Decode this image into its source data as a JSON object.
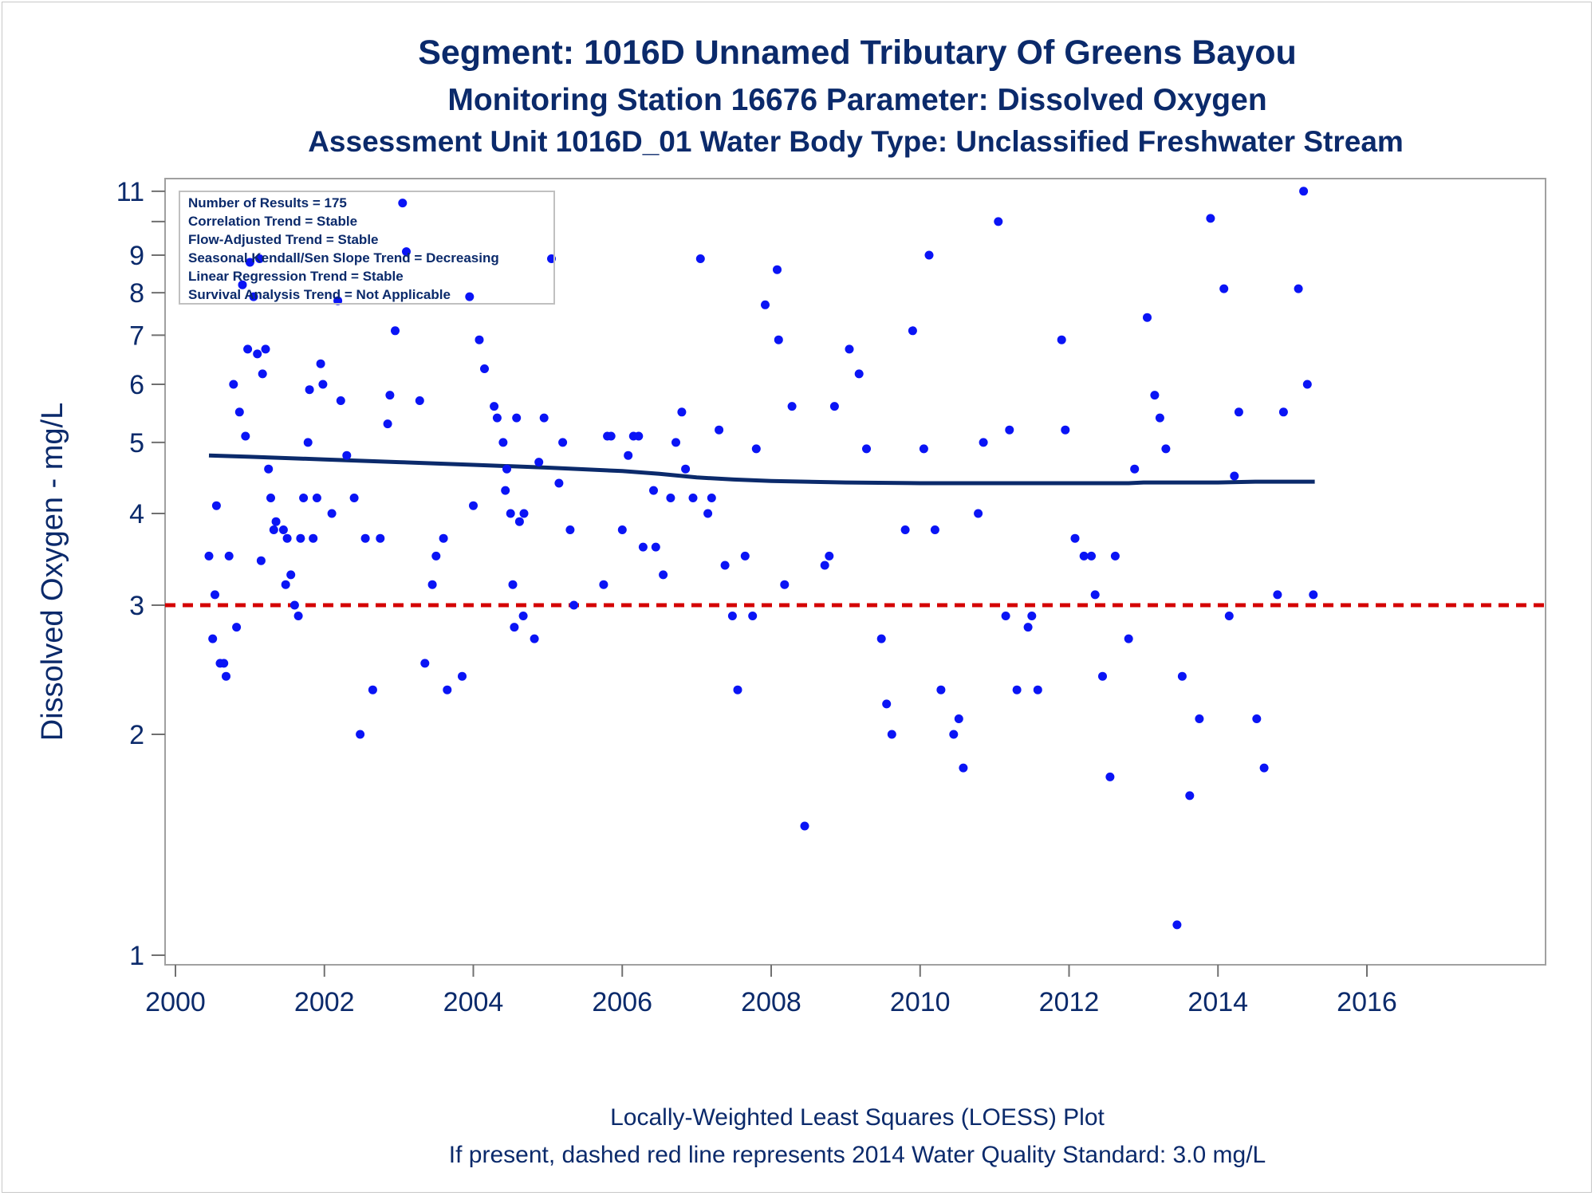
{
  "titles": {
    "line1": "Segment: 1016D  Unnamed Tributary Of Greens Bayou",
    "line2": "Monitoring Station 16676 Parameter: Dissolved Oxygen",
    "line3": "Assessment Unit 1016D_01   Water Body Type: Unclassified Freshwater Stream"
  },
  "footnotes": {
    "line1": "Locally-Weighted Least Squares (LOESS) Plot",
    "line2": "If present, dashed red line represents 2014 Water Quality Standard: 3.0 mg/L"
  },
  "stats_box": [
    "Number of Results = 175",
    "Correlation Trend = Stable",
    "Flow-Adjusted Trend = Stable",
    "Seasonal Kendall/Sen Slope Trend = Decreasing",
    "Linear Regression Trend = Stable",
    "Survival Analysis Trend = Not Applicable"
  ],
  "colors": {
    "points": "#0a14f5",
    "loess": "#0b2a6b",
    "standard": "#d40000",
    "text": "#0b2a6b"
  },
  "chart_data": {
    "type": "scatter",
    "ylabel": "Dissolved Oxygen - mg/L",
    "xlabel": "",
    "y_scale": "log",
    "xlim": [
      2000,
      2016
    ],
    "ylim": [
      0.97,
      11.4
    ],
    "x_ticks": [
      2000,
      2002,
      2004,
      2006,
      2008,
      2010,
      2012,
      2014,
      2016
    ],
    "y_ticks": [
      1,
      2,
      3,
      4,
      5,
      6,
      7,
      8,
      9,
      10,
      11
    ],
    "y_tick_labels": [
      "1",
      "2",
      "3",
      "4",
      "5",
      "6",
      "7",
      "8",
      "9",
      "",
      "11"
    ],
    "grid": false,
    "legend": "none",
    "standard_line": {
      "value": 3.0,
      "style": "dashed"
    },
    "points": [
      [
        2000.45,
        3.5
      ],
      [
        2000.5,
        2.7
      ],
      [
        2000.53,
        3.1
      ],
      [
        2000.55,
        4.1
      ],
      [
        2000.6,
        2.5
      ],
      [
        2000.65,
        2.5
      ],
      [
        2000.68,
        2.4
      ],
      [
        2000.72,
        3.5
      ],
      [
        2000.78,
        6.0
      ],
      [
        2000.82,
        2.8
      ],
      [
        2000.86,
        5.5
      ],
      [
        2000.9,
        8.2
      ],
      [
        2000.94,
        5.1
      ],
      [
        2000.97,
        6.7
      ],
      [
        2001.0,
        8.8
      ],
      [
        2001.05,
        7.9
      ],
      [
        2001.1,
        6.6
      ],
      [
        2001.13,
        8.9
      ],
      [
        2001.15,
        3.45
      ],
      [
        2001.17,
        6.2
      ],
      [
        2001.21,
        6.7
      ],
      [
        2001.25,
        4.6
      ],
      [
        2001.28,
        4.2
      ],
      [
        2001.32,
        3.8
      ],
      [
        2001.35,
        3.9
      ],
      [
        2001.45,
        3.8
      ],
      [
        2001.48,
        3.2
      ],
      [
        2001.5,
        3.7
      ],
      [
        2001.55,
        3.3
      ],
      [
        2001.6,
        3.0
      ],
      [
        2001.65,
        2.9
      ],
      [
        2001.68,
        3.7
      ],
      [
        2001.72,
        4.2
      ],
      [
        2001.78,
        5.0
      ],
      [
        2001.8,
        5.9
      ],
      [
        2001.85,
        3.7
      ],
      [
        2001.9,
        4.2
      ],
      [
        2001.95,
        6.4
      ],
      [
        2001.98,
        6.0
      ],
      [
        2002.1,
        4.0
      ],
      [
        2002.18,
        7.8
      ],
      [
        2002.22,
        5.7
      ],
      [
        2002.3,
        4.8
      ],
      [
        2002.4,
        4.2
      ],
      [
        2002.48,
        2.0
      ],
      [
        2002.55,
        3.7
      ],
      [
        2002.65,
        2.3
      ],
      [
        2002.75,
        3.7
      ],
      [
        2002.85,
        5.3
      ],
      [
        2002.88,
        5.8
      ],
      [
        2002.95,
        7.1
      ],
      [
        2003.05,
        10.6
      ],
      [
        2003.1,
        9.1
      ],
      [
        2003.28,
        5.7
      ],
      [
        2003.35,
        2.5
      ],
      [
        2003.45,
        3.2
      ],
      [
        2003.5,
        3.5
      ],
      [
        2003.6,
        3.7
      ],
      [
        2003.65,
        2.3
      ],
      [
        2003.85,
        2.4
      ],
      [
        2003.95,
        7.9
      ],
      [
        2004.0,
        4.1
      ],
      [
        2004.08,
        6.9
      ],
      [
        2004.15,
        6.3
      ],
      [
        2004.28,
        5.6
      ],
      [
        2004.32,
        5.4
      ],
      [
        2004.4,
        5.0
      ],
      [
        2004.43,
        4.3
      ],
      [
        2004.45,
        4.6
      ],
      [
        2004.5,
        4.0
      ],
      [
        2004.53,
        3.2
      ],
      [
        2004.55,
        2.8
      ],
      [
        2004.58,
        5.4
      ],
      [
        2004.62,
        3.9
      ],
      [
        2004.67,
        2.9
      ],
      [
        2004.68,
        4.0
      ],
      [
        2004.82,
        2.7
      ],
      [
        2004.88,
        4.7
      ],
      [
        2004.95,
        5.4
      ],
      [
        2005.05,
        8.9
      ],
      [
        2005.15,
        4.4
      ],
      [
        2005.2,
        5.0
      ],
      [
        2005.3,
        3.8
      ],
      [
        2005.35,
        3.0
      ],
      [
        2005.75,
        3.2
      ],
      [
        2005.8,
        5.1
      ],
      [
        2005.85,
        5.1
      ],
      [
        2006.0,
        3.8
      ],
      [
        2006.08,
        4.8
      ],
      [
        2006.15,
        5.1
      ],
      [
        2006.22,
        5.1
      ],
      [
        2006.28,
        3.6
      ],
      [
        2006.42,
        4.3
      ],
      [
        2006.45,
        3.6
      ],
      [
        2006.55,
        3.3
      ],
      [
        2006.65,
        4.2
      ],
      [
        2006.72,
        5.0
      ],
      [
        2006.8,
        5.5
      ],
      [
        2006.85,
        4.6
      ],
      [
        2006.95,
        4.2
      ],
      [
        2007.05,
        8.9
      ],
      [
        2007.15,
        4.0
      ],
      [
        2007.2,
        4.2
      ],
      [
        2007.3,
        5.2
      ],
      [
        2007.38,
        3.4
      ],
      [
        2007.48,
        2.9
      ],
      [
        2007.55,
        2.3
      ],
      [
        2007.65,
        3.5
      ],
      [
        2007.75,
        2.9
      ],
      [
        2007.8,
        4.9
      ],
      [
        2007.92,
        7.7
      ],
      [
        2008.08,
        8.6
      ],
      [
        2008.1,
        6.9
      ],
      [
        2008.18,
        3.2
      ],
      [
        2008.28,
        5.6
      ],
      [
        2008.45,
        1.5
      ],
      [
        2008.72,
        3.4
      ],
      [
        2008.78,
        3.5
      ],
      [
        2008.85,
        5.6
      ],
      [
        2009.05,
        6.7
      ],
      [
        2009.18,
        6.2
      ],
      [
        2009.28,
        4.9
      ],
      [
        2009.48,
        2.7
      ],
      [
        2009.55,
        2.2
      ],
      [
        2009.62,
        2.0
      ],
      [
        2009.8,
        3.8
      ],
      [
        2009.9,
        7.1
      ],
      [
        2010.05,
        4.9
      ],
      [
        2010.12,
        9.0
      ],
      [
        2010.2,
        3.8
      ],
      [
        2010.28,
        2.3
      ],
      [
        2010.45,
        2.0
      ],
      [
        2010.52,
        2.1
      ],
      [
        2010.58,
        1.8
      ],
      [
        2010.78,
        4.0
      ],
      [
        2010.85,
        5.0
      ],
      [
        2011.05,
        10.0
      ],
      [
        2011.15,
        2.9
      ],
      [
        2011.2,
        5.2
      ],
      [
        2011.3,
        2.3
      ],
      [
        2011.45,
        2.8
      ],
      [
        2011.5,
        2.9
      ],
      [
        2011.58,
        2.3
      ],
      [
        2011.9,
        6.9
      ],
      [
        2011.95,
        5.2
      ],
      [
        2012.08,
        3.7
      ],
      [
        2012.2,
        3.5
      ],
      [
        2012.3,
        3.5
      ],
      [
        2012.35,
        3.1
      ],
      [
        2012.45,
        2.4
      ],
      [
        2012.55,
        1.75
      ],
      [
        2012.62,
        3.5
      ],
      [
        2012.8,
        2.7
      ],
      [
        2012.88,
        4.6
      ],
      [
        2013.05,
        7.4
      ],
      [
        2013.15,
        5.8
      ],
      [
        2013.22,
        5.4
      ],
      [
        2013.3,
        4.9
      ],
      [
        2013.45,
        1.1
      ],
      [
        2013.52,
        2.4
      ],
      [
        2013.62,
        1.65
      ],
      [
        2013.75,
        2.1
      ],
      [
        2013.9,
        10.1
      ],
      [
        2014.08,
        8.1
      ],
      [
        2014.15,
        2.9
      ],
      [
        2014.22,
        4.5
      ],
      [
        2014.28,
        5.5
      ],
      [
        2014.52,
        2.1
      ],
      [
        2014.62,
        1.8
      ],
      [
        2014.8,
        3.1
      ],
      [
        2014.88,
        5.5
      ],
      [
        2015.08,
        8.1
      ],
      [
        2015.15,
        11.0
      ],
      [
        2015.2,
        6.0
      ],
      [
        2015.28,
        3.1
      ]
    ],
    "loess": [
      [
        2000.45,
        4.8
      ],
      [
        2001.0,
        4.78
      ],
      [
        2002.0,
        4.74
      ],
      [
        2003.0,
        4.7
      ],
      [
        2004.0,
        4.66
      ],
      [
        2005.0,
        4.62
      ],
      [
        2006.0,
        4.57
      ],
      [
        2006.5,
        4.53
      ],
      [
        2007.0,
        4.48
      ],
      [
        2007.5,
        4.45
      ],
      [
        2008.0,
        4.43
      ],
      [
        2009.0,
        4.41
      ],
      [
        2010.0,
        4.4
      ],
      [
        2011.0,
        4.4
      ],
      [
        2012.0,
        4.4
      ],
      [
        2012.8,
        4.4
      ],
      [
        2013.0,
        4.41
      ],
      [
        2014.0,
        4.41
      ],
      [
        2014.5,
        4.42
      ],
      [
        2015.3,
        4.42
      ]
    ]
  }
}
